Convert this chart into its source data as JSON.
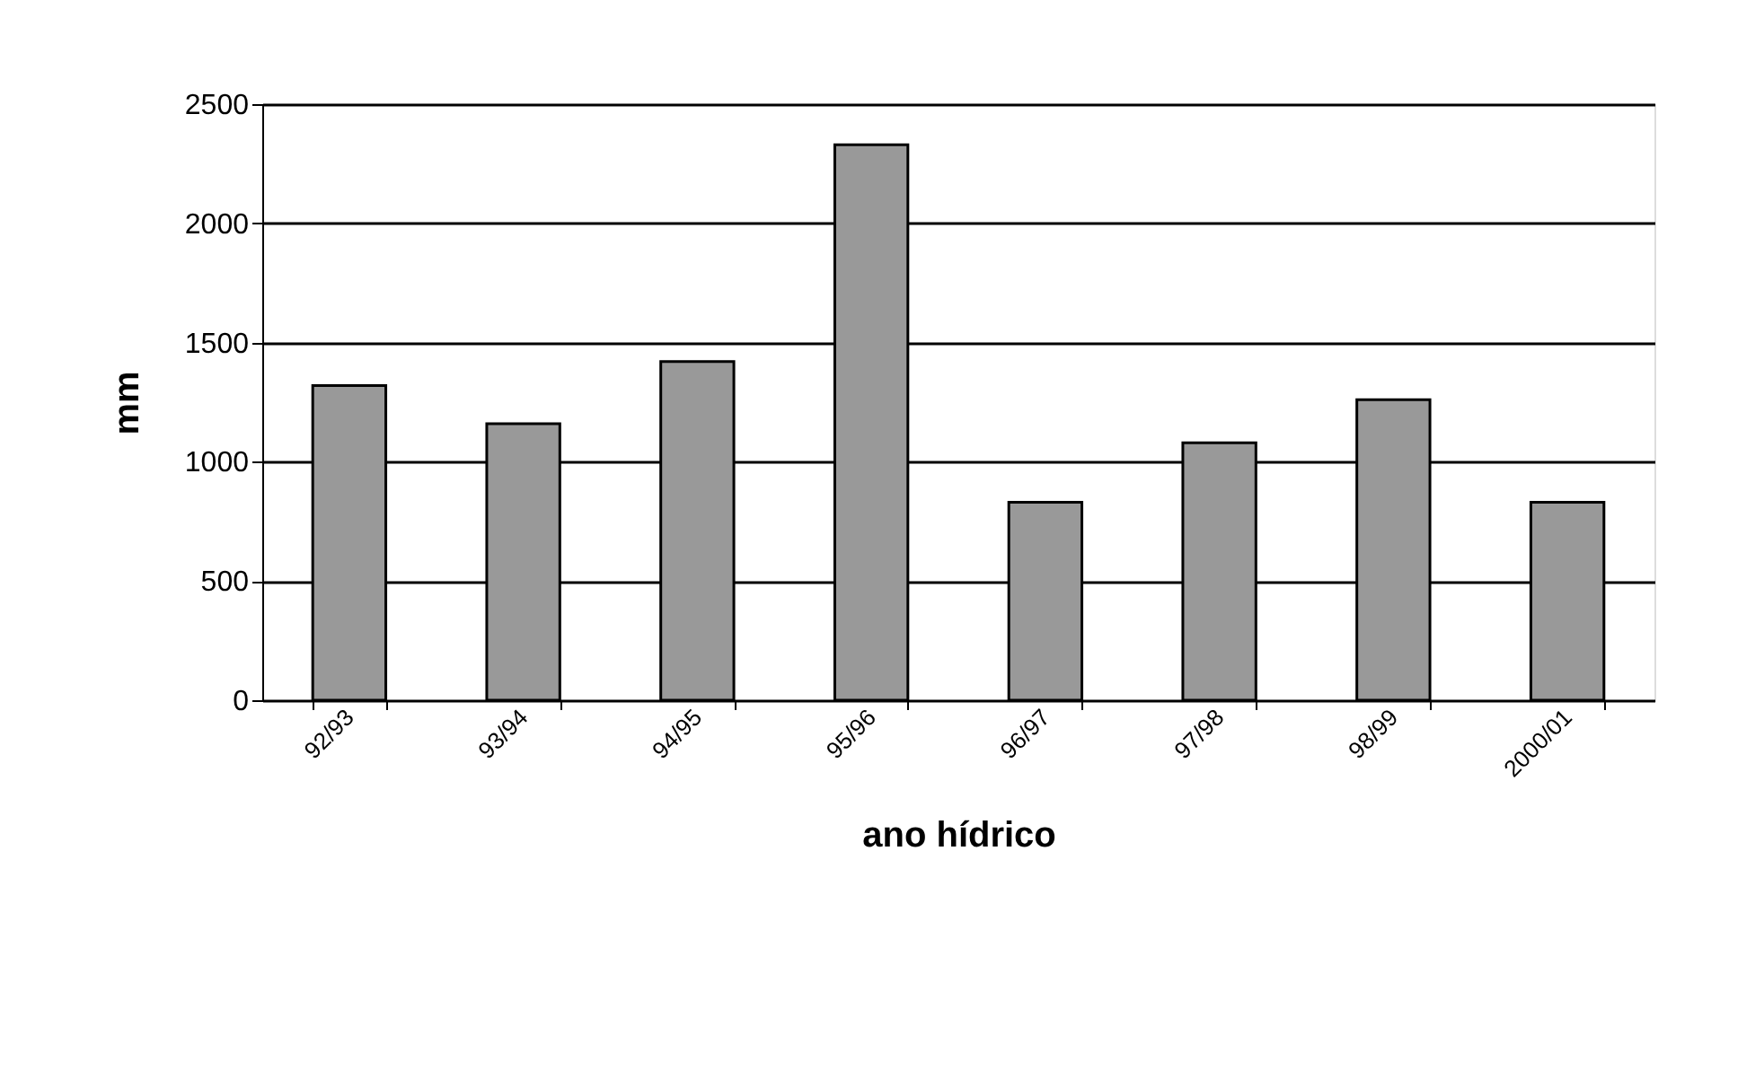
{
  "chart_data": {
    "type": "bar",
    "xlabel": "ano hídrico",
    "ylabel": "mm",
    "categories": [
      "92/93",
      "93/94",
      "94/95",
      "95/96",
      "96/97",
      "97/98",
      "98/99",
      "2000/01"
    ],
    "values": [
      1320,
      1160,
      1420,
      2330,
      830,
      1080,
      1260,
      830
    ],
    "color": "#999999",
    "ylim": [
      0,
      2500
    ],
    "yticks": [
      0,
      500,
      1000,
      1500,
      2000,
      2500
    ],
    "grid": "y"
  }
}
